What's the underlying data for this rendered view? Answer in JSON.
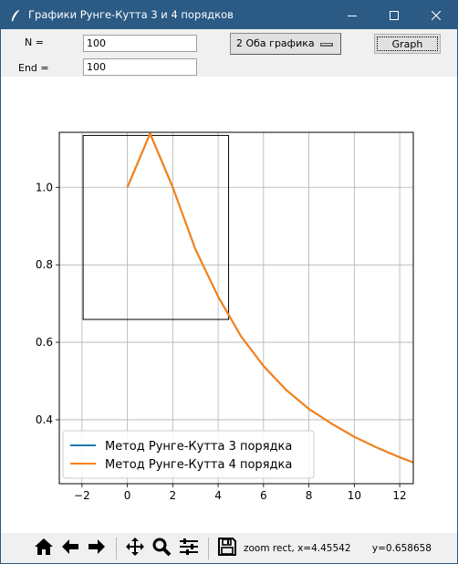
{
  "window": {
    "title": "Графики Рунге-Кутта 3 и 4 порядков",
    "colors": {
      "titlebar": "#2b5a84",
      "series1": "#1f77b4",
      "series2": "#ff7f0e"
    }
  },
  "controls": {
    "n_label": "N =",
    "n_value": "100",
    "end_label": "End =",
    "end_value": "100",
    "mode_selected": "2 Оба графика",
    "graph_button": "Graph"
  },
  "toolbar": {
    "icons": [
      "home-icon",
      "back-arrow-icon",
      "forward-arrow-icon",
      "pan-icon",
      "zoom-icon",
      "configure-subplots-icon",
      "save-icon"
    ],
    "status_mode": "zoom rect",
    "status_x": "x=4.45542",
    "status_y": "y=0.658658"
  },
  "chart_data": {
    "type": "line",
    "title": "",
    "xlabel": "",
    "ylabel": "",
    "xlim": [
      -3,
      12.6
    ],
    "ylim": [
      0.235,
      1.142
    ],
    "xticks": [
      "−2",
      "0",
      "2",
      "4",
      "6",
      "8",
      "10",
      "12"
    ],
    "yticks": [
      "0.4",
      "0.6",
      "0.8",
      "1.0"
    ],
    "grid": true,
    "legend_position": "lower-left",
    "series": [
      {
        "name": "Метод Рунге-Кутта 3 порядка",
        "color": "#1f77b4",
        "x": [
          0,
          1,
          2,
          3,
          4,
          5,
          6,
          7,
          8,
          9,
          10,
          11,
          12,
          12.6
        ],
        "y": [
          1.0,
          1.139,
          1.0,
          0.84,
          0.718,
          0.616,
          0.539,
          0.477,
          0.428,
          0.39,
          0.356,
          0.328,
          0.303,
          0.29
        ]
      },
      {
        "name": "Метод Рунге-Кутта 4 порядка",
        "color": "#ff7f0e",
        "x": [
          0,
          1,
          2,
          3,
          4,
          5,
          6,
          7,
          8,
          9,
          10,
          11,
          12,
          12.6
        ],
        "y": [
          1.0,
          1.139,
          1.0,
          0.84,
          0.718,
          0.616,
          0.539,
          0.477,
          0.428,
          0.39,
          0.356,
          0.328,
          0.303,
          0.29
        ]
      }
    ],
    "zoom_rect": {
      "x": [
        -1.95,
        4.46
      ],
      "y": [
        0.659,
        1.134
      ]
    }
  }
}
